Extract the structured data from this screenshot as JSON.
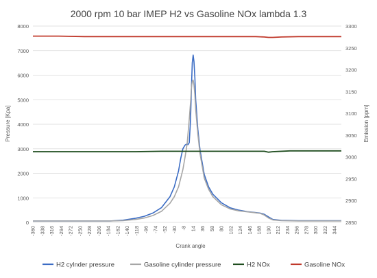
{
  "chart_data": {
    "type": "line",
    "title": "2000 rpm 10 bar IMEP H2 vs Gasoline NOx lambda 1.3",
    "xlabel": "Crank angle",
    "ylabel_left": "Pressure [Kpa]",
    "ylabel_right": "Emission [ppm]",
    "xlim": [
      -360,
      360
    ],
    "ylim_left": [
      0,
      8000
    ],
    "ylim_right": [
      2850,
      3300
    ],
    "x_ticks": [
      -360,
      -338,
      -316,
      -294,
      -272,
      -250,
      -228,
      -206,
      -184,
      -162,
      -140,
      -118,
      -96,
      -74,
      -52,
      -30,
      -8,
      14,
      36,
      58,
      80,
      102,
      124,
      146,
      168,
      190,
      212,
      234,
      256,
      278,
      300,
      322,
      344
    ],
    "y_ticks_left": [
      0,
      1000,
      2000,
      3000,
      4000,
      5000,
      6000,
      7000,
      8000
    ],
    "y_ticks_right": [
      2850,
      2900,
      2950,
      3000,
      3050,
      3100,
      3150,
      3200,
      3250,
      3300
    ],
    "grid": true,
    "legend_position": "bottom",
    "series": [
      {
        "name": "H2 cylnder pressure",
        "axis": "left",
        "color": "#3b6cc4",
        "x": [
          -360,
          -300,
          -240,
          -180,
          -150,
          -120,
          -100,
          -80,
          -60,
          -40,
          -30,
          -20,
          -15,
          -10,
          -5,
          0,
          2,
          5,
          8,
          10,
          12,
          14,
          16,
          18,
          20,
          25,
          30,
          40,
          50,
          60,
          80,
          100,
          120,
          140,
          160,
          170,
          180,
          190,
          200,
          220,
          260,
          300,
          360
        ],
        "y": [
          60,
          60,
          60,
          60,
          90,
          170,
          250,
          380,
          600,
          1050,
          1450,
          2100,
          2600,
          3000,
          3150,
          3200,
          3170,
          3250,
          4200,
          5500,
          6500,
          6820,
          6550,
          5900,
          5000,
          3800,
          2950,
          1950,
          1450,
          1150,
          800,
          600,
          500,
          440,
          400,
          380,
          330,
          220,
          120,
          80,
          70,
          70,
          70
        ]
      },
      {
        "name": "Gasoline cylinder pressure",
        "axis": "left",
        "color": "#a6a6a6",
        "x": [
          -360,
          -300,
          -240,
          -180,
          -150,
          -120,
          -100,
          -80,
          -60,
          -40,
          -30,
          -20,
          -10,
          -5,
          0,
          5,
          8,
          10,
          12,
          14,
          16,
          18,
          20,
          25,
          30,
          40,
          50,
          60,
          80,
          100,
          120,
          140,
          160,
          170,
          180,
          190,
          200,
          220,
          260,
          300,
          360
        ],
        "y": [
          60,
          60,
          60,
          60,
          70,
          120,
          180,
          280,
          450,
          780,
          1050,
          1450,
          2150,
          2650,
          3200,
          4200,
          4900,
          5500,
          5750,
          5800,
          5600,
          5200,
          4600,
          3600,
          2800,
          1800,
          1350,
          1050,
          720,
          550,
          470,
          430,
          390,
          370,
          300,
          180,
          100,
          70,
          60,
          60,
          60
        ]
      },
      {
        "name": "H2 NOx",
        "axis": "right",
        "color": "#1f4d1f",
        "x": [
          -360,
          -300,
          -240,
          -180,
          -120,
          -60,
          0,
          60,
          120,
          180,
          190,
          200,
          240,
          300,
          360
        ],
        "y": [
          3012,
          3012,
          3012,
          3012,
          3012,
          3013,
          3013,
          3013,
          3013,
          3013,
          3011,
          3012,
          3014,
          3014,
          3014
        ]
      },
      {
        "name": "Gasoline NOx",
        "axis": "right",
        "color": "#c0392b",
        "x": [
          -360,
          -300,
          -240,
          -180,
          -120,
          -60,
          0,
          60,
          120,
          160,
          180,
          190,
          200,
          220,
          260,
          300,
          360
        ],
        "y": [
          3277,
          3277,
          3276,
          3276,
          3276,
          3276,
          3276,
          3276,
          3276,
          3276,
          3275,
          3274,
          3274,
          3275,
          3276,
          3276,
          3276
        ]
      }
    ]
  }
}
